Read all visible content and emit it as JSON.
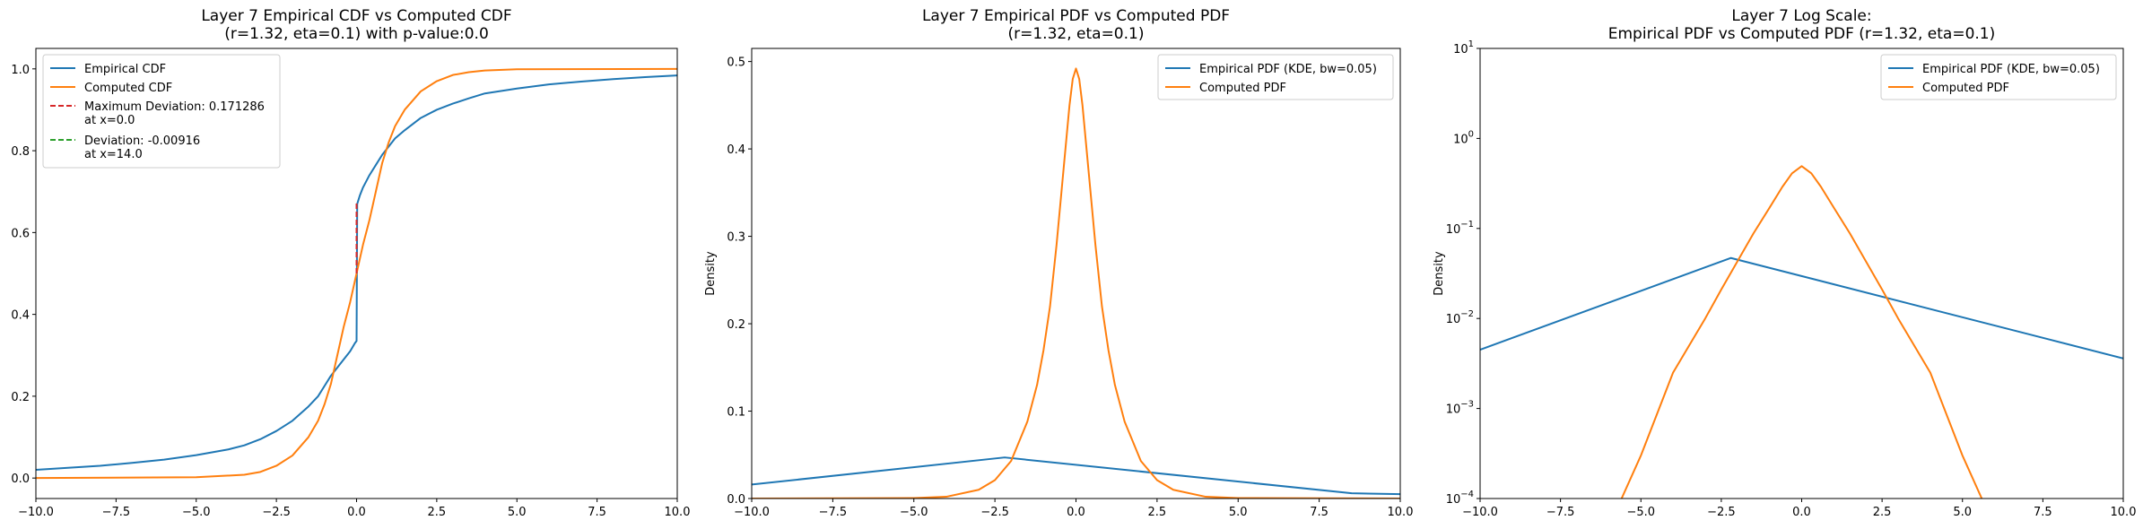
{
  "chart_data": [
    {
      "type": "line",
      "title": "Layer 7 Empirical CDF vs Computed CDF\n(r=1.32, eta=0.1) with p-value:0.0",
      "xlabel": "",
      "ylabel": "",
      "xlim": [
        -10,
        10
      ],
      "ylim": [
        -0.05,
        1.05
      ],
      "yscale": "linear",
      "xticks": [
        -10,
        -7.5,
        -5,
        -2.5,
        0,
        2.5,
        5,
        7.5,
        10
      ],
      "xtick_labels": [
        "−10.0",
        "−7.5",
        "−5.0",
        "−2.5",
        "0.0",
        "2.5",
        "5.0",
        "7.5",
        "10.0"
      ],
      "yticks": [
        0,
        0.2,
        0.4,
        0.6,
        0.8,
        1.0
      ],
      "ytick_labels": [
        "0.0",
        "0.2",
        "0.4",
        "0.6",
        "0.8",
        "1.0"
      ],
      "legend_position": "upper-left",
      "series": [
        {
          "name": "Empirical CDF",
          "color": "#1f77b4",
          "style": "solid",
          "x": [
            -10,
            -9,
            -8,
            -7,
            -6,
            -5,
            -4,
            -3.5,
            -3,
            -2.5,
            -2,
            -1.5,
            -1.2,
            -1,
            -0.8,
            -0.5,
            -0.2,
            -0.05,
            0,
            0.02,
            0.1,
            0.2,
            0.4,
            0.6,
            0.8,
            1.0,
            1.2,
            1.5,
            2.0,
            2.5,
            3.0,
            3.5,
            4.0,
            5.0,
            6.0,
            7.0,
            8.0,
            9.0,
            10.0
          ],
          "y": [
            0.02,
            0.025,
            0.03,
            0.037,
            0.045,
            0.056,
            0.07,
            0.08,
            0.095,
            0.115,
            0.14,
            0.175,
            0.2,
            0.225,
            0.25,
            0.28,
            0.31,
            0.33,
            0.335,
            0.67,
            0.69,
            0.71,
            0.74,
            0.765,
            0.79,
            0.81,
            0.83,
            0.85,
            0.88,
            0.9,
            0.915,
            0.928,
            0.94,
            0.952,
            0.962,
            0.969,
            0.975,
            0.98,
            0.984
          ]
        },
        {
          "name": "Computed CDF",
          "color": "#ff7f0e",
          "style": "solid",
          "x": [
            -10,
            -5,
            -3.5,
            -3,
            -2.5,
            -2,
            -1.5,
            -1.2,
            -1,
            -0.8,
            -0.6,
            -0.4,
            -0.2,
            0,
            0.2,
            0.4,
            0.6,
            0.8,
            1,
            1.2,
            1.5,
            2,
            2.5,
            3,
            3.5,
            4,
            5,
            10
          ],
          "y": [
            0,
            0.002,
            0.008,
            0.015,
            0.03,
            0.055,
            0.1,
            0.14,
            0.18,
            0.23,
            0.3,
            0.37,
            0.43,
            0.5,
            0.57,
            0.63,
            0.7,
            0.77,
            0.82,
            0.86,
            0.9,
            0.945,
            0.97,
            0.985,
            0.992,
            0.996,
            0.999,
            1.0
          ]
        },
        {
          "name": "Maximum Deviation: 0.171286\nat x=0.0",
          "color": "#d62728",
          "style": "dashed",
          "x": [
            0,
            0
          ],
          "y": [
            0.5,
            0.671
          ]
        },
        {
          "name": "Deviation: -0.00916\nat x=14.0",
          "color": "#2ca02c",
          "style": "dashed",
          "x": [],
          "y": []
        }
      ]
    },
    {
      "type": "line",
      "title": "Layer 7 Empirical PDF vs Computed PDF\n(r=1.32, eta=0.1)",
      "xlabel": "",
      "ylabel": "Density",
      "xlim": [
        -10,
        10
      ],
      "ylim": [
        0,
        0.515
      ],
      "yscale": "linear",
      "xticks": [
        -10,
        -7.5,
        -5,
        -2.5,
        0,
        2.5,
        5,
        7.5,
        10
      ],
      "xtick_labels": [
        "−10.0",
        "−7.5",
        "−5.0",
        "−2.5",
        "0.0",
        "2.5",
        "5.0",
        "7.5",
        "10.0"
      ],
      "yticks": [
        0,
        0.1,
        0.2,
        0.3,
        0.4,
        0.5
      ],
      "ytick_labels": [
        "0.0",
        "0.1",
        "0.2",
        "0.3",
        "0.4",
        "0.5"
      ],
      "legend_position": "upper-right",
      "series": [
        {
          "name": "Empirical PDF (KDE, bw=0.05)",
          "color": "#1f77b4",
          "style": "solid",
          "x": [
            -10,
            -2.2,
            8.5,
            10
          ],
          "y": [
            0.016,
            0.047,
            0.006,
            0.005
          ]
        },
        {
          "name": "Computed PDF",
          "color": "#ff7f0e",
          "style": "solid",
          "x": [
            -10,
            -5,
            -4,
            -3,
            -2.5,
            -2,
            -1.5,
            -1.2,
            -1,
            -0.8,
            -0.6,
            -0.4,
            -0.3,
            -0.2,
            -0.1,
            0,
            0.1,
            0.2,
            0.3,
            0.4,
            0.6,
            0.8,
            1,
            1.2,
            1.5,
            2,
            2.5,
            3,
            4,
            5,
            10
          ],
          "y": [
            0,
            0.0005,
            0.002,
            0.01,
            0.021,
            0.043,
            0.088,
            0.13,
            0.17,
            0.22,
            0.29,
            0.37,
            0.41,
            0.45,
            0.48,
            0.492,
            0.48,
            0.45,
            0.41,
            0.37,
            0.29,
            0.22,
            0.17,
            0.13,
            0.088,
            0.043,
            0.021,
            0.01,
            0.002,
            0.0005,
            0
          ]
        }
      ]
    },
    {
      "type": "line",
      "title": "Layer 7 Log Scale:\nEmpirical PDF vs Computed PDF (r=1.32, eta=0.1)",
      "xlabel": "",
      "ylabel": "Density",
      "xlim": [
        -10,
        10
      ],
      "ylim": [
        0.0001,
        10
      ],
      "yscale": "log",
      "xticks": [
        -10,
        -7.5,
        -5,
        -2.5,
        0,
        2.5,
        5,
        7.5,
        10
      ],
      "xtick_labels": [
        "−10.0",
        "−7.5",
        "−5.0",
        "−2.5",
        "0.0",
        "2.5",
        "5.0",
        "7.5",
        "10.0"
      ],
      "yticks": [
        0.0001,
        0.001,
        0.01,
        0.1,
        1,
        10
      ],
      "ytick_labels": [
        {
          "base": "10",
          "exp": "−4"
        },
        {
          "base": "10",
          "exp": "−3"
        },
        {
          "base": "10",
          "exp": "−2"
        },
        {
          "base": "10",
          "exp": "−1"
        },
        {
          "base": "10",
          "exp": "0"
        },
        {
          "base": "10",
          "exp": "1"
        }
      ],
      "legend_position": "upper-right",
      "series": [
        {
          "name": "Empirical PDF (KDE, bw=0.05)",
          "color": "#1f77b4",
          "style": "solid",
          "x": [
            -10,
            -2.2,
            10
          ],
          "y": [
            0.0045,
            0.047,
            0.0036
          ]
        },
        {
          "name": "Computed PDF",
          "color": "#ff7f0e",
          "style": "solid",
          "x": [
            -5.6,
            -5,
            -4,
            -3,
            -2.5,
            -2,
            -1.5,
            -1,
            -0.6,
            -0.3,
            0,
            0.3,
            0.6,
            1,
            1.5,
            2,
            2.5,
            3,
            4,
            5,
            5.6
          ],
          "y": [
            0.0001,
            0.0003,
            0.0025,
            0.01,
            0.021,
            0.043,
            0.088,
            0.17,
            0.29,
            0.41,
            0.492,
            0.41,
            0.29,
            0.17,
            0.088,
            0.043,
            0.021,
            0.01,
            0.0025,
            0.0003,
            0.0001
          ]
        }
      ]
    }
  ]
}
